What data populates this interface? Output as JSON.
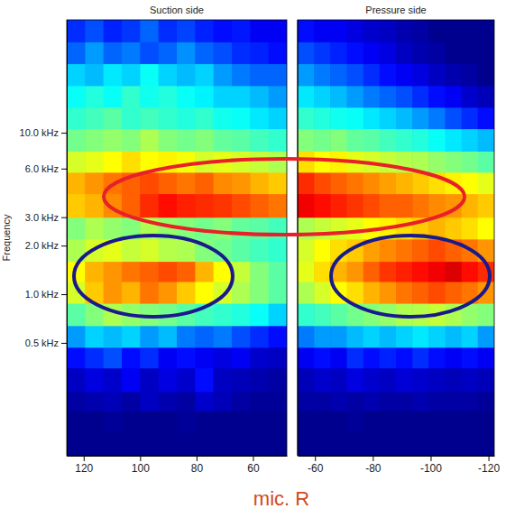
{
  "chart_data": [
    {
      "type": "heatmap",
      "title": "Suction side",
      "y_label": "Frequency",
      "log": "y",
      "xlim": [
        126,
        48
      ],
      "xticks": [
        120,
        100,
        80,
        60
      ],
      "ylim": [
        0.1,
        50
      ],
      "yticks": [
        {
          "value": 0.5,
          "label": "0.5 kHz"
        },
        {
          "value": 1,
          "label": "1.0 kHz"
        },
        {
          "value": 2,
          "label": "2.0 kHz"
        },
        {
          "value": 3,
          "label": "3.0 kHz"
        },
        {
          "value": 6,
          "label": "6.0 kHz"
        },
        {
          "value": 10,
          "label": "10.0 kHz"
        }
      ],
      "color_range": [
        0,
        1
      ],
      "x_edges": [
        126,
        119.5,
        113,
        106.5,
        100,
        93.5,
        87,
        80.5,
        74,
        67.5,
        61,
        54.5,
        48
      ],
      "y_edges": [
        0.1,
        0.14,
        0.19,
        0.25,
        0.35,
        0.47,
        0.64,
        0.88,
        1.2,
        1.6,
        2.2,
        3.0,
        4.2,
        5.7,
        7.7,
        10.6,
        14.4,
        19.6,
        26.8,
        36.6,
        50
      ],
      "cells": [
        [
          0,
          0,
          0,
          0,
          0,
          0,
          0,
          0,
          0,
          0,
          0,
          0
        ],
        [
          0,
          0,
          0.01,
          0,
          0,
          0,
          0.01,
          0,
          0,
          0,
          0,
          0
        ],
        [
          0.02,
          0.03,
          0.04,
          0.02,
          0.05,
          0.03,
          0.02,
          0.06,
          0.04,
          0.02,
          0.01,
          0.01
        ],
        [
          0.05,
          0.08,
          0.06,
          0.1,
          0.05,
          0.08,
          0.06,
          0.12,
          0.05,
          0.04,
          0.03,
          0.02
        ],
        [
          0.12,
          0.15,
          0.18,
          0.12,
          0.15,
          0.1,
          0.12,
          0.1,
          0.08,
          0.1,
          0.06,
          0.05
        ],
        [
          0.25,
          0.3,
          0.28,
          0.3,
          0.25,
          0.28,
          0.22,
          0.2,
          0.22,
          0.18,
          0.15,
          0.12
        ],
        [
          0.45,
          0.5,
          0.55,
          0.52,
          0.5,
          0.48,
          0.45,
          0.42,
          0.4,
          0.38,
          0.35,
          0.3
        ],
        [
          0.6,
          0.7,
          0.75,
          0.72,
          0.78,
          0.75,
          0.7,
          0.65,
          0.6,
          0.55,
          0.5,
          0.45
        ],
        [
          0.65,
          0.72,
          0.75,
          0.78,
          0.8,
          0.82,
          0.8,
          0.72,
          0.65,
          0.58,
          0.5,
          0.45
        ],
        [
          0.55,
          0.6,
          0.62,
          0.58,
          0.6,
          0.56,
          0.55,
          0.5,
          0.48,
          0.45,
          0.42,
          0.4
        ],
        [
          0.5,
          0.55,
          0.52,
          0.5,
          0.55,
          0.52,
          0.5,
          0.48,
          0.5,
          0.46,
          0.45,
          0.42
        ],
        [
          0.7,
          0.72,
          0.76,
          0.8,
          0.85,
          0.88,
          0.86,
          0.85,
          0.84,
          0.82,
          0.8,
          0.78
        ],
        [
          0.72,
          0.75,
          0.78,
          0.8,
          0.82,
          0.8,
          0.78,
          0.8,
          0.76,
          0.75,
          0.72,
          0.7
        ],
        [
          0.6,
          0.62,
          0.65,
          0.68,
          0.65,
          0.66,
          0.64,
          0.6,
          0.62,
          0.6,
          0.58,
          0.55
        ],
        [
          0.48,
          0.5,
          0.52,
          0.5,
          0.55,
          0.5,
          0.48,
          0.5,
          0.46,
          0.45,
          0.42,
          0.4
        ],
        [
          0.4,
          0.42,
          0.45,
          0.4,
          0.42,
          0.4,
          0.38,
          0.4,
          0.36,
          0.35,
          0.32,
          0.3
        ],
        [
          0.35,
          0.38,
          0.35,
          0.4,
          0.36,
          0.38,
          0.35,
          0.33,
          0.3,
          0.3,
          0.28,
          0.25
        ],
        [
          0.3,
          0.28,
          0.32,
          0.3,
          0.35,
          0.3,
          0.28,
          0.3,
          0.25,
          0.22,
          0.2,
          0.2
        ],
        [
          0.2,
          0.25,
          0.2,
          0.22,
          0.18,
          0.2,
          0.24,
          0.2,
          0.18,
          0.15,
          0.14,
          0.12
        ],
        [
          0.15,
          0.18,
          0.14,
          0.16,
          0.2,
          0.15,
          0.17,
          0.14,
          0.12,
          0.13,
          0.1,
          0.1
        ]
      ]
    },
    {
      "type": "heatmap",
      "title": "Pressure side",
      "log": "y",
      "tick_labels": "x",
      "xlim": [
        -54,
        -122
      ],
      "xticks": [
        -60,
        -80,
        -100,
        -120
      ],
      "ylim": [
        0.1,
        50
      ],
      "color_range": [
        0,
        1
      ],
      "x_edges": [
        -54,
        -59.7,
        -65.3,
        -71,
        -76.7,
        -82.3,
        -88,
        -93.7,
        -99.3,
        -105,
        -110.7,
        -116.3,
        -122
      ],
      "y_edges": [
        0.1,
        0.14,
        0.19,
        0.25,
        0.35,
        0.47,
        0.64,
        0.88,
        1.2,
        1.6,
        2.2,
        3.0,
        4.2,
        5.7,
        7.7,
        10.6,
        14.4,
        19.6,
        26.8,
        36.6,
        50
      ],
      "cells": [
        [
          0,
          0,
          0,
          0,
          0,
          0,
          0,
          0,
          0,
          0,
          0,
          0
        ],
        [
          0,
          0,
          0,
          0.01,
          0,
          0,
          0,
          0,
          0,
          0,
          0,
          0
        ],
        [
          0.02,
          0.02,
          0.03,
          0.02,
          0.03,
          0.02,
          0.02,
          0.03,
          0.02,
          0.02,
          0.02,
          0.01
        ],
        [
          0.04,
          0.06,
          0.05,
          0.08,
          0.06,
          0.05,
          0.07,
          0.06,
          0.05,
          0.04,
          0.05,
          0.04
        ],
        [
          0.1,
          0.12,
          0.1,
          0.15,
          0.12,
          0.14,
          0.12,
          0.15,
          0.12,
          0.1,
          0.12,
          0.1
        ],
        [
          0.22,
          0.25,
          0.25,
          0.28,
          0.3,
          0.28,
          0.3,
          0.32,
          0.3,
          0.28,
          0.3,
          0.25
        ],
        [
          0.4,
          0.42,
          0.45,
          0.48,
          0.5,
          0.52,
          0.55,
          0.56,
          0.58,
          0.55,
          0.52,
          0.5
        ],
        [
          0.55,
          0.6,
          0.65,
          0.68,
          0.72,
          0.75,
          0.78,
          0.8,
          0.82,
          0.8,
          0.78,
          0.75
        ],
        [
          0.62,
          0.68,
          0.72,
          0.75,
          0.8,
          0.84,
          0.86,
          0.88,
          0.9,
          0.92,
          0.88,
          0.85
        ],
        [
          0.6,
          0.65,
          0.68,
          0.7,
          0.74,
          0.76,
          0.78,
          0.8,
          0.82,
          0.8,
          0.78,
          0.75
        ],
        [
          0.55,
          0.58,
          0.6,
          0.62,
          0.65,
          0.66,
          0.68,
          0.7,
          0.72,
          0.7,
          0.68,
          0.65
        ],
        [
          0.9,
          0.88,
          0.86,
          0.84,
          0.82,
          0.8,
          0.8,
          0.78,
          0.76,
          0.75,
          0.72,
          0.7
        ],
        [
          0.85,
          0.82,
          0.8,
          0.78,
          0.76,
          0.74,
          0.72,
          0.7,
          0.68,
          0.66,
          0.65,
          0.62
        ],
        [
          0.68,
          0.65,
          0.66,
          0.62,
          0.6,
          0.58,
          0.56,
          0.55,
          0.52,
          0.5,
          0.48,
          0.45
        ],
        [
          0.5,
          0.48,
          0.5,
          0.46,
          0.45,
          0.42,
          0.4,
          0.38,
          0.35,
          0.32,
          0.3,
          0.28
        ],
        [
          0.4,
          0.38,
          0.36,
          0.35,
          0.32,
          0.3,
          0.28,
          0.25,
          0.22,
          0.18,
          0.15,
          0.12
        ],
        [
          0.32,
          0.3,
          0.28,
          0.25,
          0.22,
          0.2,
          0.18,
          0.15,
          0.12,
          0.1,
          0.06,
          0.04
        ],
        [
          0.25,
          0.22,
          0.2,
          0.18,
          0.15,
          0.12,
          0.1,
          0.08,
          0.05,
          0.03,
          0.02,
          0
        ],
        [
          0.18,
          0.16,
          0.14,
          0.12,
          0.1,
          0.08,
          0.05,
          0.03,
          0.02,
          0,
          0,
          0
        ],
        [
          0.12,
          0.1,
          0.1,
          0.08,
          0.06,
          0.05,
          0.03,
          0.02,
          0,
          0,
          0,
          0
        ]
      ]
    }
  ],
  "caption": "mic. R"
}
